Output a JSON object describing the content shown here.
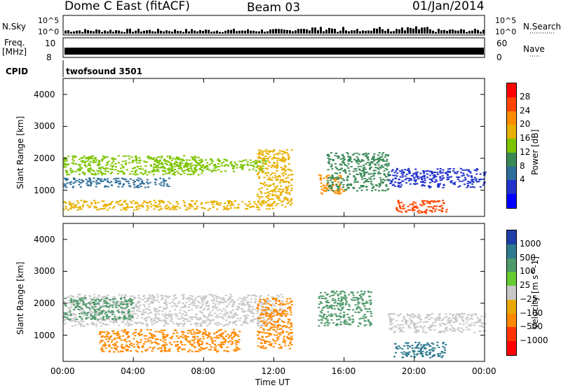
{
  "header": {
    "station": "Dome C East (fitACF)",
    "beam": "Beam 03",
    "date": "01/Jan/2014"
  },
  "top_panels": {
    "nsky_label": "N.Sky",
    "nsearch_label": "N.Search",
    "noise_ticks": [
      "10^5",
      "10^0"
    ],
    "freq_label": "Freq.",
    "freq_unit": "[MHz]",
    "freq_ticks": [
      "10",
      "8"
    ],
    "nave_label": "Nave",
    "nave_ticks": [
      "60",
      "0"
    ],
    "cpid_label": "CPID",
    "cpid_value": "twofsound 3501"
  },
  "chart_data": [
    {
      "type": "heatmap",
      "title": "",
      "variable": "Power",
      "xlabel": "",
      "ylabel": "Slant Range [km]",
      "x_ticks": [
        "00:00",
        "04:00",
        "08:00",
        "12:00",
        "16:00",
        "20:00",
        "00:00"
      ],
      "y_ticks": [
        1000,
        2000,
        3000,
        4000
      ],
      "ylim": [
        180,
        4500
      ],
      "colorbar": {
        "label": "Power [dB]",
        "ticks": [
          "28",
          "24",
          "20",
          "16",
          "12",
          "8",
          "4"
        ],
        "colors": [
          "#ff0000",
          "#ff4400",
          "#ff8c00",
          "#e8b000",
          "#7cc400",
          "#3a8a57",
          "#2e6e9a",
          "#2233cc",
          "#0000ff"
        ]
      },
      "features": [
        {
          "t_start_h": 0.0,
          "t_end_h": 6.0,
          "range_km": [
            1100,
            1400
          ],
          "db": 10
        },
        {
          "t_start_h": 0.0,
          "t_end_h": 8.0,
          "range_km": [
            1500,
            2100
          ],
          "db": 18
        },
        {
          "t_start_h": 0.0,
          "t_end_h": 12.0,
          "range_km": [
            400,
            700
          ],
          "db": 20
        },
        {
          "t_start_h": 5.0,
          "t_end_h": 11.5,
          "range_km": [
            1600,
            2000
          ],
          "db": 16
        },
        {
          "t_start_h": 11.0,
          "t_end_h": 13.0,
          "range_km": [
            500,
            2300
          ],
          "db": 22
        },
        {
          "t_start_h": 14.5,
          "t_end_h": 16.0,
          "range_km": [
            900,
            1500
          ],
          "db": 26
        },
        {
          "t_start_h": 15.0,
          "t_end_h": 18.5,
          "range_km": [
            1000,
            2200
          ],
          "db": 12
        },
        {
          "t_start_h": 18.8,
          "t_end_h": 21.8,
          "range_km": [
            300,
            700
          ],
          "db": 30
        },
        {
          "t_start_h": 18.5,
          "t_end_h": 24.0,
          "range_km": [
            1100,
            1700
          ],
          "db": 6
        }
      ]
    },
    {
      "type": "heatmap",
      "title": "",
      "variable": "Velocity",
      "xlabel": "Time UT",
      "ylabel": "Slant Range [km]",
      "x_ticks": [
        "00:00",
        "04:00",
        "08:00",
        "12:00",
        "16:00",
        "20:00",
        "00:00"
      ],
      "y_ticks": [
        1000,
        2000,
        3000,
        4000
      ],
      "ylim": [
        180,
        4500
      ],
      "colorbar": {
        "label": "Velocity [m s^-1]",
        "ticks": [
          "1000",
          "500",
          "100",
          "25",
          "−25",
          "−100",
          "−500",
          "−1000"
        ],
        "colors": [
          "#1f3fa8",
          "#2f7b8f",
          "#4f9a6b",
          "#66cc33",
          "#c8c8c8",
          "#e8a800",
          "#ff8800",
          "#ff3300",
          "#ff0000"
        ]
      },
      "features": [
        {
          "t_start_h": 0.0,
          "t_end_h": 12.5,
          "range_km": [
            1300,
            2300
          ],
          "ms": 0
        },
        {
          "t_start_h": 0.0,
          "t_end_h": 4.0,
          "range_km": [
            1500,
            2200
          ],
          "ms": 100
        },
        {
          "t_start_h": 2.0,
          "t_end_h": 10.0,
          "range_km": [
            500,
            1200
          ],
          "ms": -300
        },
        {
          "t_start_h": 11.0,
          "t_end_h": 13.0,
          "range_km": [
            600,
            2200
          ],
          "ms": -300
        },
        {
          "t_start_h": 14.5,
          "t_end_h": 17.5,
          "range_km": [
            1300,
            2400
          ],
          "ms": 200
        },
        {
          "t_start_h": 18.8,
          "t_end_h": 21.8,
          "range_km": [
            300,
            800
          ],
          "ms": 500
        },
        {
          "t_start_h": 18.5,
          "t_end_h": 24.0,
          "range_km": [
            1100,
            1700
          ],
          "ms": 0
        }
      ]
    }
  ]
}
